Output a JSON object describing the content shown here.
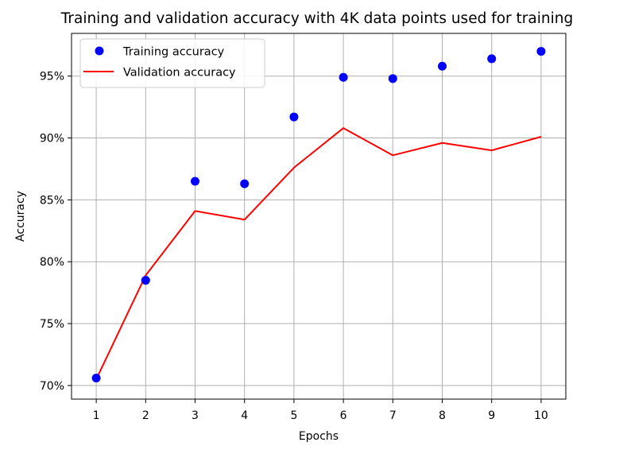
{
  "chart_data": {
    "type": "line",
    "title": "Training and validation accuracy with 4K data points used for training",
    "xlabel": "Epochs",
    "ylabel": "Accuracy",
    "x": [
      1,
      2,
      3,
      4,
      5,
      6,
      7,
      8,
      9,
      10
    ],
    "xlim": [
      0.5,
      10.5
    ],
    "ylim": [
      0.689,
      0.9845
    ],
    "x_ticks": [
      1,
      2,
      3,
      4,
      5,
      6,
      7,
      8,
      9,
      10
    ],
    "y_ticks": [
      0.7,
      0.75,
      0.8,
      0.85,
      0.9,
      0.95
    ],
    "x_tick_labels": [
      "1",
      "2",
      "3",
      "4",
      "5",
      "6",
      "7",
      "8",
      "9",
      "10"
    ],
    "y_tick_labels": [
      "70%",
      "75%",
      "80%",
      "85%",
      "90%",
      "95%"
    ],
    "grid": true,
    "legend": "top-left",
    "series": [
      {
        "name": "Training accuracy",
        "kind": "scatter",
        "color": "#0000ff",
        "values": [
          0.706,
          0.785,
          0.865,
          0.863,
          0.917,
          0.949,
          0.948,
          0.958,
          0.964,
          0.97
        ]
      },
      {
        "name": "Validation accuracy",
        "kind": "line",
        "color": "#ff0000",
        "values": [
          0.705,
          0.789,
          0.841,
          0.834,
          0.876,
          0.908,
          0.886,
          0.896,
          0.89,
          0.901
        ]
      }
    ]
  }
}
